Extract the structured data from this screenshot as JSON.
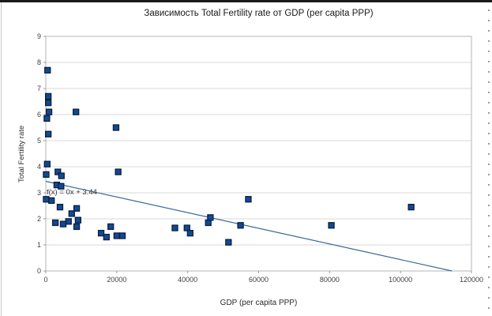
{
  "chart_data": {
    "type": "scatter",
    "title": "Зависимость Total Fertility rate от GDP (per capita PPP)",
    "xlabel": "GDP (per capita PPP)",
    "ylabel": "Total Fertility rate",
    "xlim": [
      0,
      120000
    ],
    "ylim": [
      0,
      9
    ],
    "x_ticks": [
      0,
      20000,
      40000,
      60000,
      80000,
      100000,
      120000
    ],
    "y_ticks": [
      0,
      1,
      2,
      3,
      4,
      5,
      6,
      7,
      8,
      9
    ],
    "grid": "horizontal-only",
    "legend_position": "none",
    "series": [
      {
        "name": "Total Fertility rate",
        "marker": "square",
        "points": [
          [
            500,
            7.7
          ],
          [
            700,
            6.7
          ],
          [
            700,
            6.45
          ],
          [
            900,
            6.1
          ],
          [
            300,
            5.85
          ],
          [
            700,
            5.25
          ],
          [
            400,
            4.1
          ],
          [
            100,
            3.7
          ],
          [
            3400,
            3.8
          ],
          [
            4400,
            3.65
          ],
          [
            3100,
            3.3
          ],
          [
            4300,
            3.25
          ],
          [
            100,
            2.75
          ],
          [
            1600,
            2.7
          ],
          [
            4000,
            2.45
          ],
          [
            8700,
            2.4
          ],
          [
            7300,
            2.2
          ],
          [
            9100,
            1.95
          ],
          [
            6400,
            1.9
          ],
          [
            2700,
            1.85
          ],
          [
            4900,
            1.8
          ],
          [
            8700,
            1.7
          ],
          [
            8500,
            6.1
          ],
          [
            19800,
            5.5
          ],
          [
            20400,
            3.8
          ],
          [
            15600,
            1.45
          ],
          [
            17100,
            1.3
          ],
          [
            18300,
            1.7
          ],
          [
            20000,
            1.35
          ],
          [
            21600,
            1.35
          ],
          [
            36400,
            1.65
          ],
          [
            39800,
            1.65
          ],
          [
            40700,
            1.45
          ],
          [
            45800,
            1.85
          ],
          [
            46400,
            2.05
          ],
          [
            51500,
            1.1
          ],
          [
            54900,
            1.75
          ],
          [
            57100,
            2.75
          ],
          [
            80500,
            1.75
          ],
          [
            103000,
            2.45
          ]
        ]
      }
    ],
    "trendline": {
      "label": "f(x) = 0x + 3.44",
      "intercept": 3.44,
      "x_at_zero": 114500
    },
    "colors": {
      "marker_fill": "#114a93",
      "marker_border": "#0c1f3e",
      "trend_line": "#39699b",
      "gridline": "#d8d8d8",
      "plot_border": "#b5b5b5",
      "tick": "#9a9a9a",
      "tick_label": "#404040",
      "title_text": "#1a1a1a"
    }
  }
}
